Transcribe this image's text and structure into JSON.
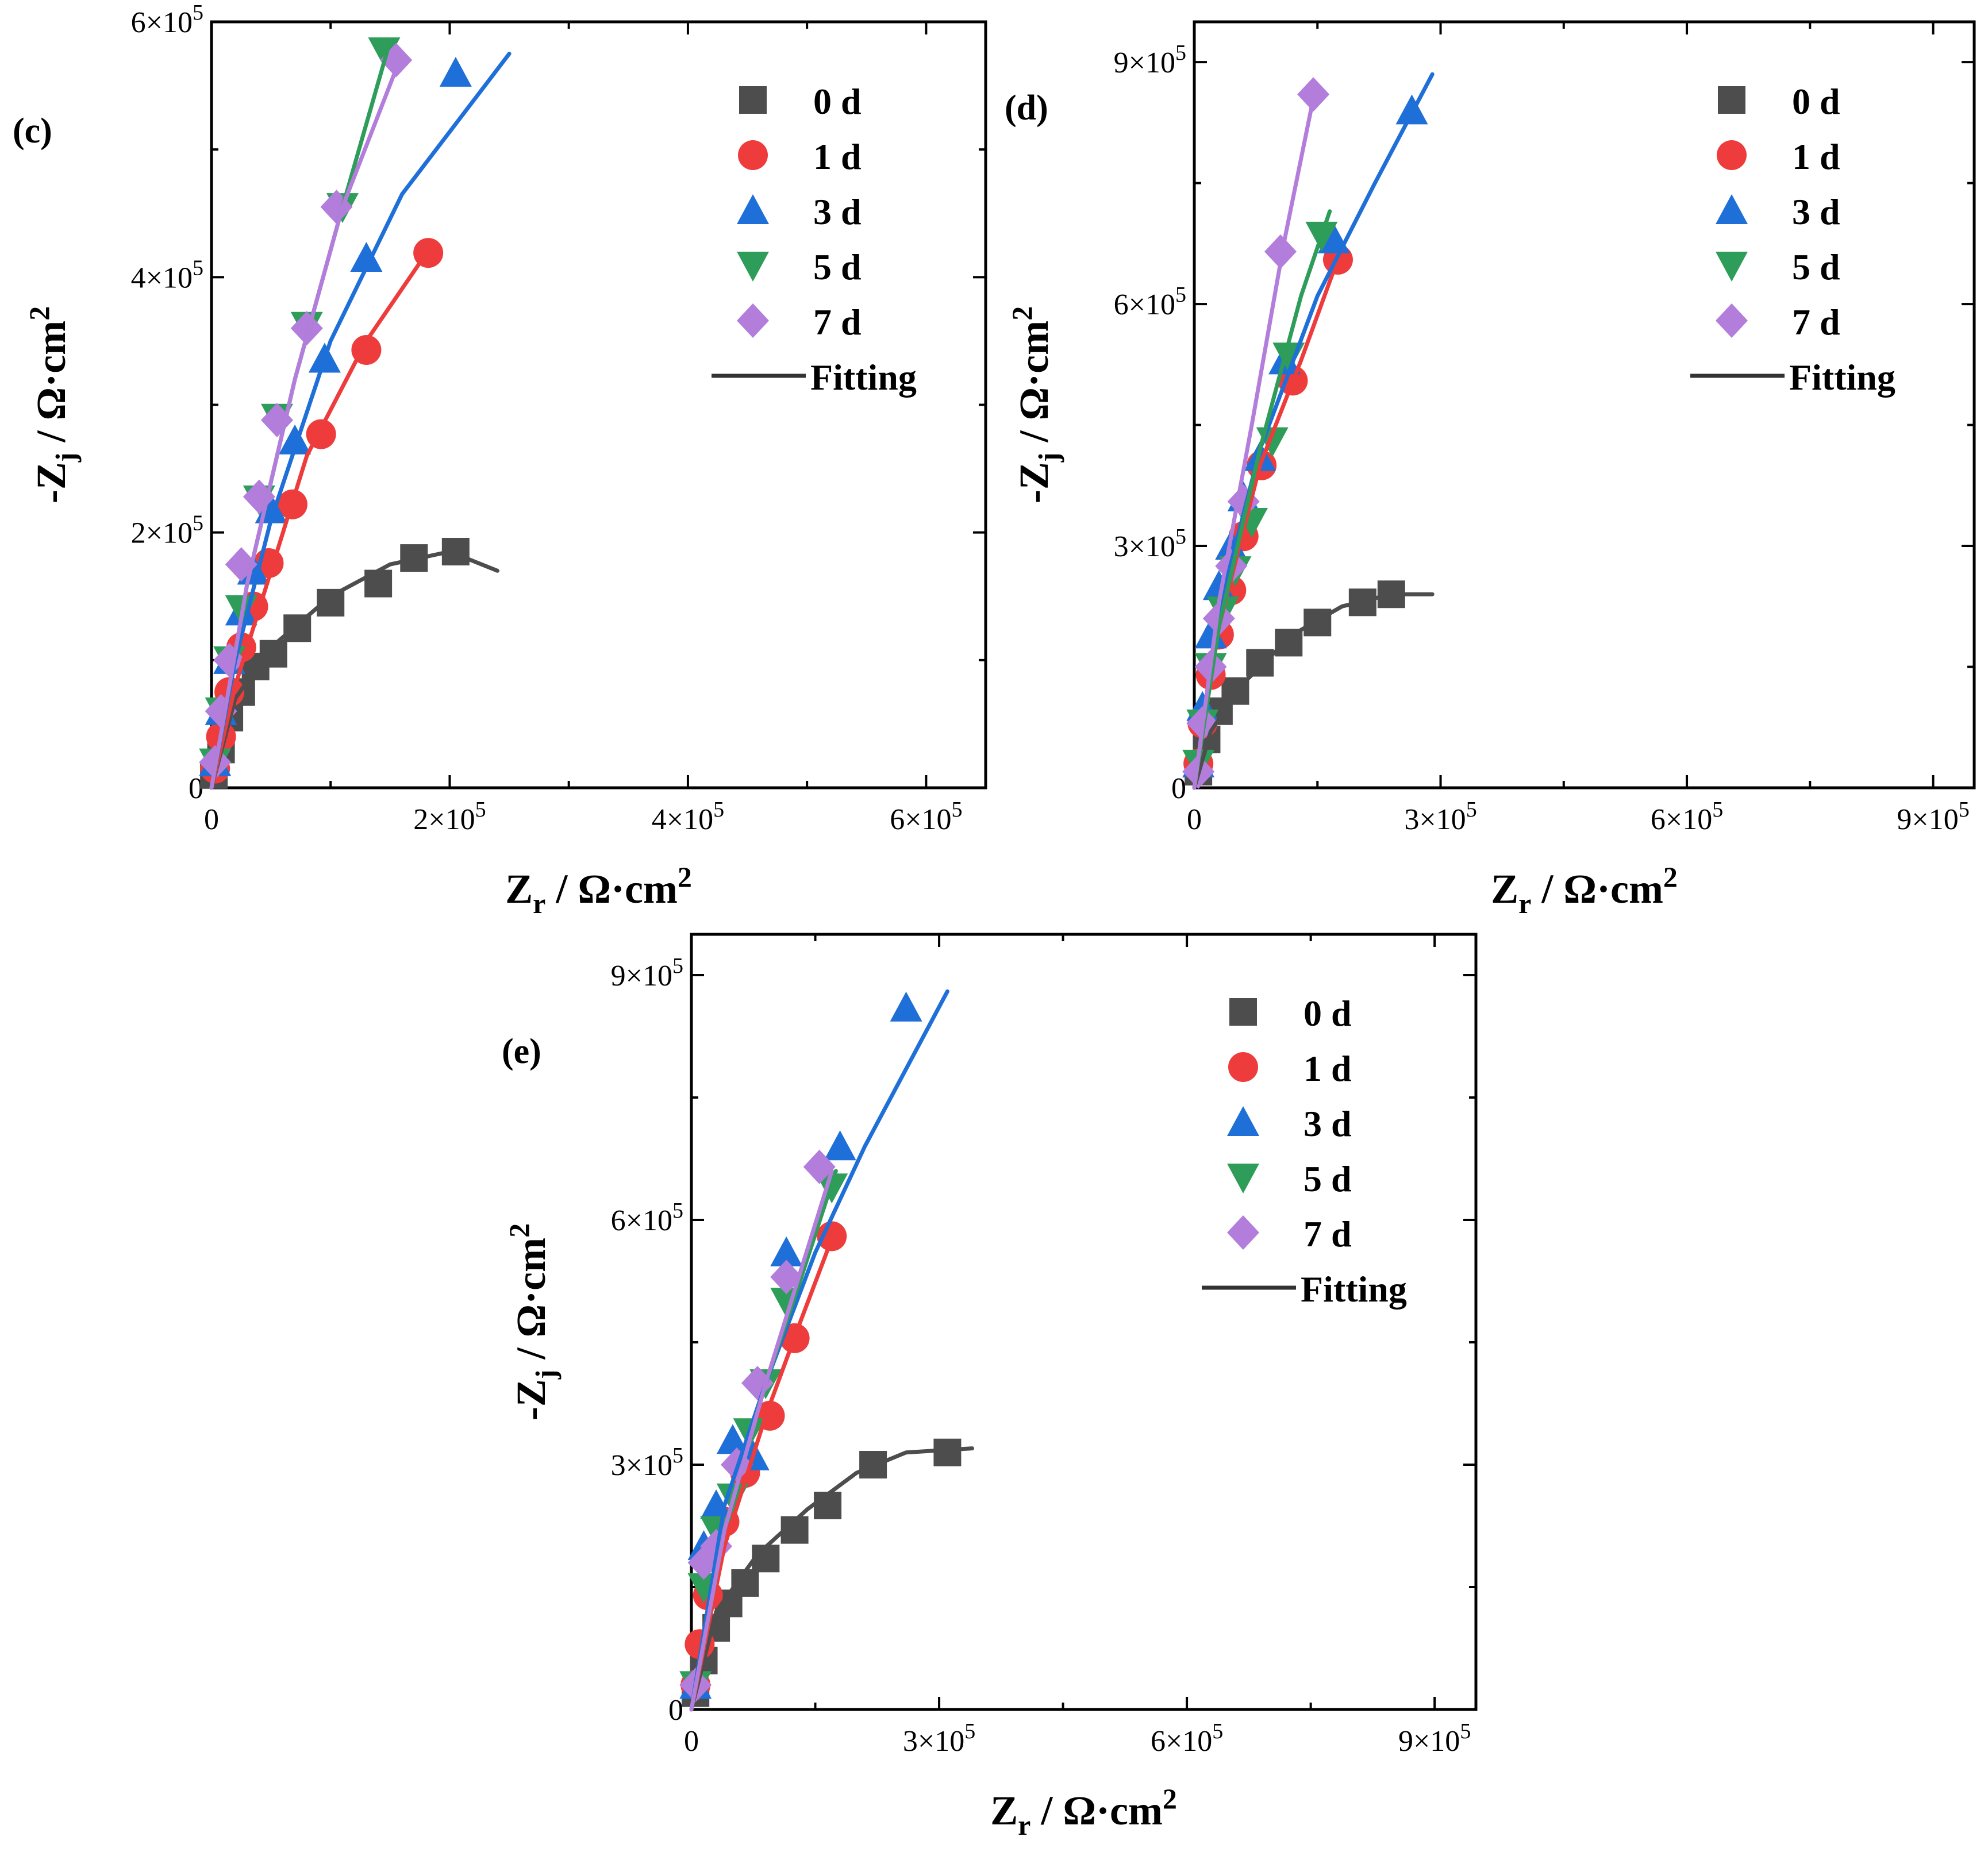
{
  "chart_data": [
    {
      "panel": "(c)",
      "type": "scatter",
      "xlabel": "Zr / Ω·cm2",
      "ylabel": "-Zj / Ω·cm2",
      "xlim": [
        0,
        650000
      ],
      "ylim": [
        0,
        600000
      ],
      "xticks": [
        0,
        200000,
        400000,
        600000
      ],
      "yticks": [
        0,
        200000,
        400000,
        600000
      ],
      "tick_labels_x": [
        "0",
        "2×10^5",
        "4×10^5",
        "6×10^5"
      ],
      "tick_labels_y": [
        "0",
        "2×10^5",
        "4×10^5",
        "6×10^5"
      ],
      "legend": [
        "0 d",
        "1 d",
        "3 d",
        "5 d",
        "7 d",
        "Fitting"
      ],
      "legend_position": "top-right",
      "series": [
        {
          "name": "0 d",
          "x": [
            2000,
            8000,
            15000,
            25000,
            37000,
            52000,
            72000,
            100000,
            140000,
            170000,
            205000
          ],
          "y": [
            10000,
            30000,
            55000,
            75000,
            95000,
            105000,
            125000,
            145000,
            160000,
            180000,
            185000
          ],
          "fit_x": [
            0,
            20000,
            50000,
            100000,
            150000,
            200000,
            240000
          ],
          "fit_y": [
            0,
            70000,
            110000,
            150000,
            175000,
            185000,
            170000
          ]
        },
        {
          "name": "1 d",
          "x": [
            3000,
            8000,
            15000,
            25000,
            35000,
            48000,
            68000,
            92000,
            130000,
            182000
          ],
          "y": [
            15000,
            40000,
            75000,
            110000,
            142000,
            176000,
            222000,
            277000,
            343000,
            419000
          ],
          "fit_x": [
            0,
            20000,
            40000,
            80000,
            130000,
            185000
          ],
          "fit_y": [
            0,
            80000,
            140000,
            260000,
            350000,
            425000
          ]
        },
        {
          "name": "3 d",
          "x": [
            3000,
            8000,
            15000,
            25000,
            35000,
            50000,
            70000,
            95000,
            130000,
            205000
          ],
          "y": [
            20000,
            60000,
            100000,
            138000,
            170000,
            218000,
            272000,
            336000,
            415000,
            560000
          ],
          "fit_x": [
            0,
            20000,
            50000,
            100000,
            160000,
            250000
          ],
          "fit_y": [
            0,
            100000,
            210000,
            350000,
            465000,
            575000
          ]
        },
        {
          "name": "5 d",
          "x": [
            3000,
            8000,
            15000,
            25000,
            40000,
            55000,
            80000,
            110000,
            145000
          ],
          "y": [
            20000,
            60000,
            100000,
            140000,
            226000,
            290000,
            362000,
            455000,
            577000
          ],
          "fit_x": [
            0,
            30000,
            70000,
            110000,
            150000
          ],
          "fit_y": [
            0,
            160000,
            320000,
            455000,
            585000
          ]
        },
        {
          "name": "7 d",
          "x": [
            3000,
            8000,
            15000,
            25000,
            40000,
            55000,
            80000,
            105000,
            155000
          ],
          "y": [
            20000,
            60000,
            100000,
            175000,
            228000,
            288000,
            360000,
            455000,
            570000
          ],
          "fit_x": [
            0,
            30000,
            70000,
            110000,
            160000
          ],
          "fit_y": [
            0,
            160000,
            320000,
            455000,
            575000
          ]
        }
      ]
    },
    {
      "panel": "(d)",
      "type": "scatter",
      "xlabel": "Zr / Ω·cm2",
      "ylabel": "-Zj / Ω·cm2",
      "xlim": [
        0,
        950000
      ],
      "ylim": [
        0,
        950000
      ],
      "xticks": [
        0,
        300000,
        600000,
        900000
      ],
      "yticks": [
        0,
        300000,
        600000,
        900000
      ],
      "tick_labels_x": [
        "0",
        "3×10^5",
        "6×10^5",
        "9×10^5"
      ],
      "tick_labels_y": [
        "0",
        "3×10^5",
        "6×10^5",
        "9×10^5"
      ],
      "legend": [
        "0 d",
        "1 d",
        "3 d",
        "5 d",
        "7 d",
        "Fitting"
      ],
      "legend_position": "top-right",
      "series": [
        {
          "name": "0 d",
          "x": [
            5000,
            15000,
            30000,
            50000,
            80000,
            115000,
            150000,
            205000,
            240000
          ],
          "y": [
            20000,
            60000,
            95000,
            120000,
            155000,
            180000,
            205000,
            230000,
            240000
          ],
          "fit_x": [
            0,
            20000,
            60000,
            120000,
            180000,
            240000,
            290000
          ],
          "fit_y": [
            0,
            70000,
            130000,
            190000,
            225000,
            240000,
            240000
          ]
        },
        {
          "name": "1 d",
          "x": [
            5000,
            10000,
            20000,
            30000,
            45000,
            60000,
            82000,
            120000,
            175000
          ],
          "y": [
            30000,
            80000,
            140000,
            190000,
            245000,
            312000,
            400000,
            505000,
            655000
          ],
          "fit_x": [
            0,
            30000,
            80000,
            130000,
            180000
          ],
          "fit_y": [
            0,
            200000,
            400000,
            530000,
            670000
          ]
        },
        {
          "name": "3 d",
          "x": [
            5000,
            10000,
            20000,
            30000,
            45000,
            60000,
            80000,
            110000,
            170000,
            265000
          ],
          "y": [
            30000,
            100000,
            190000,
            250000,
            300000,
            360000,
            410000,
            530000,
            680000,
            840000
          ],
          "fit_x": [
            0,
            30000,
            80000,
            150000,
            220000,
            290000
          ],
          "fit_y": [
            0,
            220000,
            420000,
            610000,
            750000,
            885000
          ]
        },
        {
          "name": "5 d",
          "x": [
            5000,
            10000,
            20000,
            35000,
            50000,
            70000,
            95000,
            115000,
            155000
          ],
          "y": [
            30000,
            80000,
            150000,
            220000,
            270000,
            330000,
            430000,
            535000,
            685000
          ],
          "fit_x": [
            0,
            30000,
            80000,
            130000,
            165000
          ],
          "fit_y": [
            0,
            200000,
            420000,
            610000,
            715000
          ]
        },
        {
          "name": "7 d",
          "x": [
            5000,
            10000,
            20000,
            30000,
            45000,
            60000,
            105000,
            145000
          ],
          "y": [
            20000,
            80000,
            150000,
            210000,
            275000,
            355000,
            665000,
            860000
          ],
          "fit_x": [
            0,
            30000,
            70000,
            110000,
            145000
          ],
          "fit_y": [
            0,
            230000,
            450000,
            680000,
            855000
          ]
        }
      ]
    },
    {
      "panel": "(e)",
      "type": "scatter",
      "xlabel": "Zr / Ω·cm2",
      "ylabel": "-Zj / Ω·cm2",
      "xlim": [
        0,
        950000
      ],
      "ylim": [
        0,
        950000
      ],
      "xticks": [
        0,
        300000,
        600000,
        900000
      ],
      "yticks": [
        0,
        300000,
        600000,
        900000
      ],
      "tick_labels_x": [
        "0",
        "3×10^5",
        "6×10^5",
        "9×10^5"
      ],
      "tick_labels_y": [
        "0",
        "3×10^5",
        "6×10^5",
        "9×10^5"
      ],
      "legend": [
        "0 d",
        "1 d",
        "3 d",
        "5 d",
        "7 d",
        "Fitting"
      ],
      "legend_position": "top-right",
      "series": [
        {
          "name": "0 d",
          "x": [
            5000,
            15000,
            30000,
            45000,
            65000,
            90000,
            125000,
            165000,
            220000,
            310000
          ],
          "y": [
            20000,
            60000,
            100000,
            130000,
            155000,
            185000,
            220000,
            250000,
            300000,
            315000
          ],
          "fit_x": [
            0,
            30000,
            80000,
            140000,
            200000,
            260000,
            340000
          ],
          "fit_y": [
            0,
            120000,
            190000,
            245000,
            290000,
            315000,
            320000
          ]
        },
        {
          "name": "1 d",
          "x": [
            5000,
            10000,
            20000,
            40000,
            65000,
            95000,
            125000,
            170000
          ],
          "y": [
            30000,
            80000,
            140000,
            230000,
            290000,
            360000,
            455000,
            580000
          ],
          "fit_x": [
            0,
            40000,
            90000,
            130000,
            175000
          ],
          "fit_y": [
            0,
            200000,
            360000,
            470000,
            590000
          ]
        },
        {
          "name": "3 d",
          "x": [
            5000,
            15000,
            30000,
            50000,
            75000,
            115000,
            180000,
            260000
          ],
          "y": [
            30000,
            200000,
            250000,
            330000,
            310000,
            560000,
            690000,
            860000
          ],
          "fit_x": [
            0,
            40000,
            90000,
            150000,
            210000,
            310000
          ],
          "fit_y": [
            0,
            250000,
            400000,
            560000,
            690000,
            880000
          ]
        },
        {
          "name": "5 d",
          "x": [
            5000,
            15000,
            30000,
            50000,
            70000,
            90000,
            115000,
            170000
          ],
          "y": [
            30000,
            150000,
            220000,
            260000,
            340000,
            400000,
            500000,
            640000
          ],
          "fit_x": [
            0,
            40000,
            90000,
            130000,
            175000
          ],
          "fit_y": [
            0,
            220000,
            400000,
            520000,
            660000
          ]
        },
        {
          "name": "7 d",
          "x": [
            5000,
            15000,
            30000,
            55000,
            80000,
            115000,
            155000
          ],
          "y": [
            30000,
            180000,
            200000,
            300000,
            400000,
            530000,
            665000
          ],
          "fit_x": [
            0,
            40000,
            90000,
            130000,
            170000
          ],
          "fit_y": [
            0,
            220000,
            400000,
            530000,
            660000
          ]
        }
      ]
    }
  ],
  "colors": {
    "0 d": "#4d4d4d",
    "1 d": "#ee3b3b",
    "3 d": "#1f6fd8",
    "5 d": "#2e9d5a",
    "7 d": "#b37ddb",
    "fitting_legend": "#333333"
  },
  "markers": {
    "0 d": "square",
    "1 d": "circle",
    "3 d": "triangle-up",
    "5 d": "triangle-down",
    "7 d": "diamond"
  }
}
